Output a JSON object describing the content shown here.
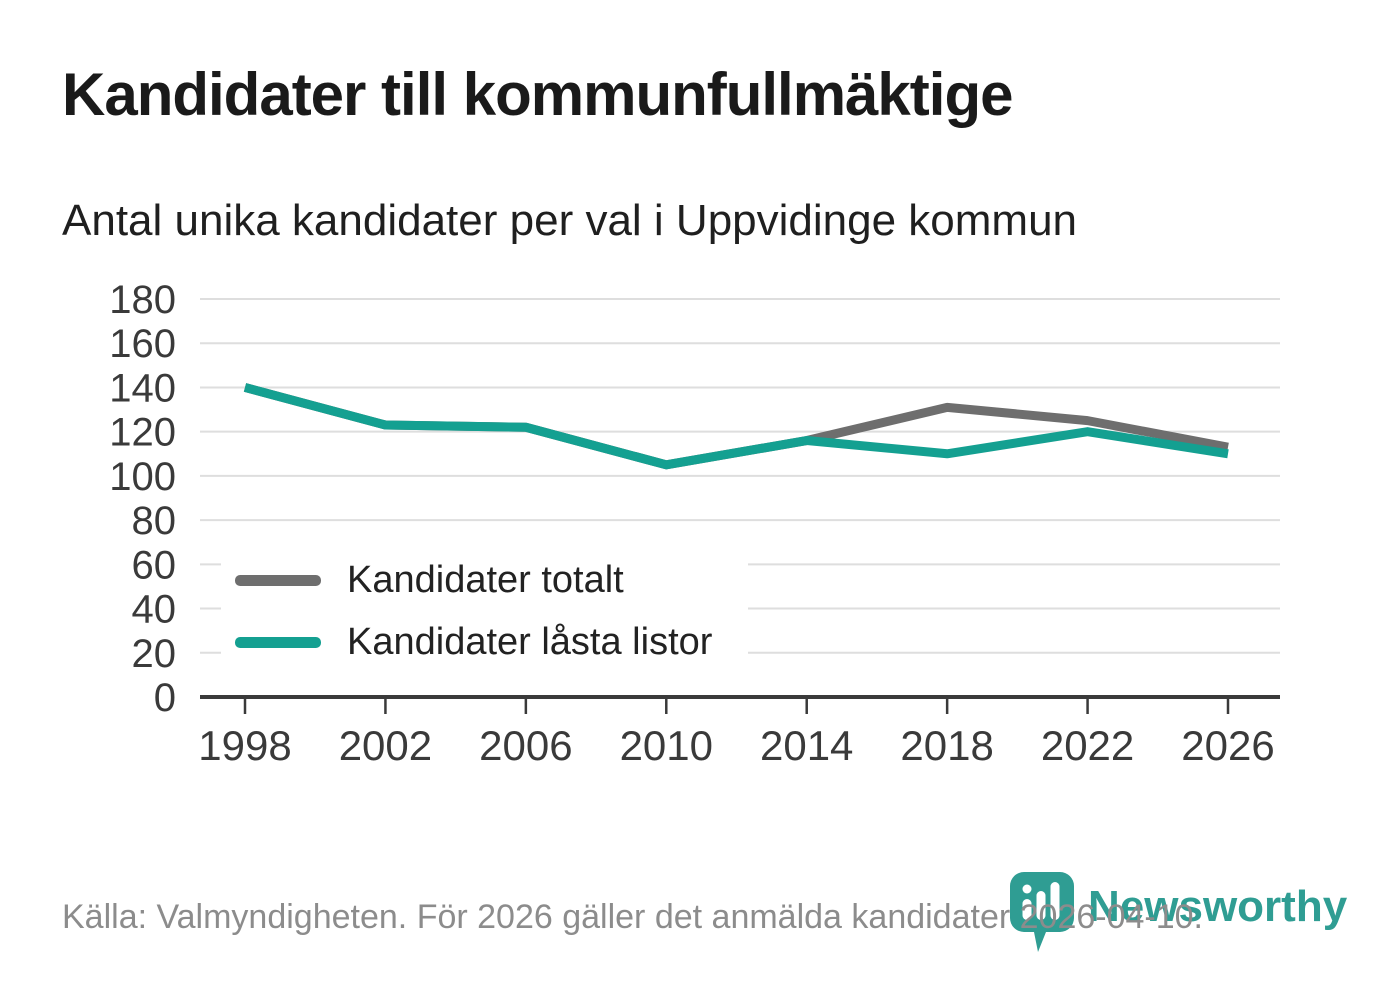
{
  "header": {
    "title": "Kandidater till kommunfullmäktige",
    "subtitle": "Antal unika kandidater per val i Uppvidinge kommun"
  },
  "chart_data": {
    "type": "line",
    "categories": [
      "1998",
      "2002",
      "2006",
      "2010",
      "2014",
      "2018",
      "2022",
      "2026"
    ],
    "series": [
      {
        "name": "Kandidater totalt",
        "color": "#6e6e6e",
        "values": [
          140,
          123,
          122,
          105,
          116,
          131,
          125,
          113
        ]
      },
      {
        "name": "Kandidater låsta listor",
        "color": "#14a091",
        "values": [
          140,
          123,
          122,
          105,
          116,
          110,
          120,
          110
        ]
      }
    ],
    "title": "Kandidater till kommunfullmäktige",
    "subtitle": "Antal unika kandidater per val i Uppvidinge kommun",
    "xlabel": "",
    "ylabel": "",
    "ylim": [
      0,
      180
    ],
    "ytick_step": 20,
    "grid": "horizontal",
    "legend_position": "inside-bottom-left"
  },
  "footer": {
    "source": "Källa: Valmyndigheten. För 2026 gäller det anmälda kandidater 2026-04-10."
  },
  "logo": {
    "text": "Newsworthy",
    "icon": "bar-chart-bubble-icon",
    "color": "#2f9d93"
  },
  "colors": {
    "series_total": "#6e6e6e",
    "series_locked_lists": "#14a091",
    "gridline": "#dedede",
    "axis": "#3a3a3a",
    "tick_label": "#3a3a3a",
    "title_text": "#1a1a1a",
    "subtitle_text": "#1f1f1f",
    "footer_text": "#8c8c8c",
    "background": "#ffffff"
  }
}
